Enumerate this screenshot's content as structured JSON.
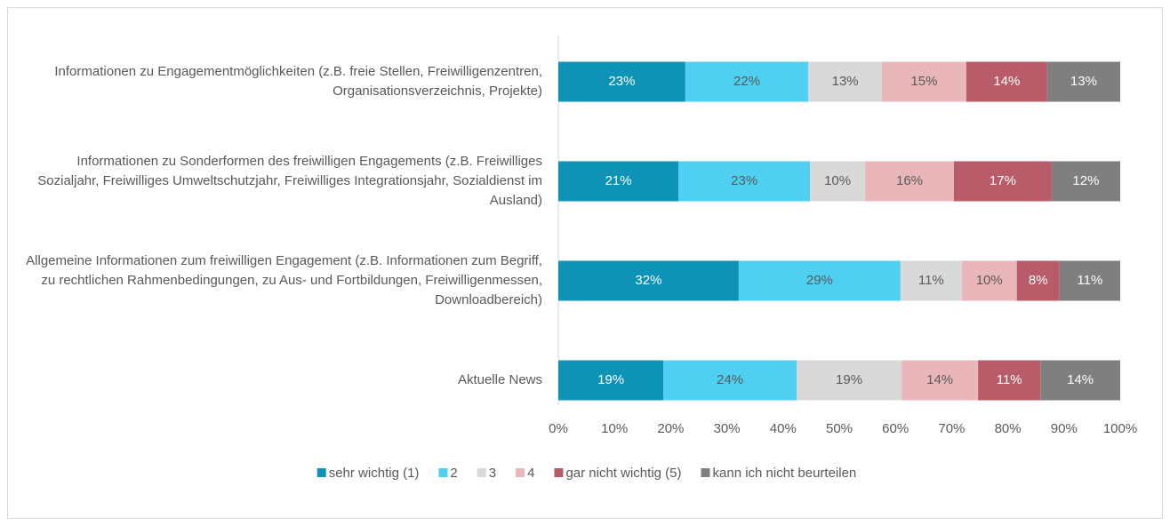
{
  "chart_data": {
    "type": "stacked-horizontal-bar",
    "categories": [
      "Informationen zu Engagementmöglichkeiten (z.B. freie Stellen, Freiwilligenzentren, Organisationsverzeichnis, Projekte)",
      "Informationen zu Sonderformen des freiwilligen Engagements (z.B. Freiwilliges Sozialjahr, Freiwilliges Umweltschutzjahr, Freiwilliges Integrationsjahr, Sozialdienst im Ausland)",
      "Allgemeine Informationen zum freiwilligen Engagement (z.B. Informationen zum Begriff, zu rechtlichen Rahmenbedingungen, zu Aus- und Fortbildungen, Freiwilligenmessen, Downloadbereich)",
      "Aktuelle News"
    ],
    "series": [
      {
        "name": "sehr wichtig (1)",
        "color": "#0e93b6",
        "label_color": "#ffffff",
        "values": [
          22.6,
          21.4,
          32.1,
          18.7
        ],
        "value_labels": [
          "23%",
          "21%",
          "32%",
          "19%"
        ]
      },
      {
        "name": "2",
        "color": "#4fd0f1",
        "label_color": "#595959",
        "values": [
          21.9,
          23.4,
          28.8,
          23.7
        ],
        "value_labels": [
          "22%",
          "23%",
          "29%",
          "24%"
        ]
      },
      {
        "name": "3",
        "color": "#d9d9d9",
        "label_color": "#595959",
        "values": [
          13.1,
          9.8,
          10.9,
          18.7
        ],
        "value_labels": [
          "13%",
          "10%",
          "11%",
          "19%"
        ]
      },
      {
        "name": "4",
        "color": "#e9b7b9",
        "label_color": "#595959",
        "values": [
          15.0,
          15.8,
          9.8,
          13.6
        ],
        "value_labels": [
          "15%",
          "16%",
          "10%",
          "14%"
        ]
      },
      {
        "name": "gar nicht wichtig (5)",
        "color": "#b85c6a",
        "label_color": "#ffffff",
        "values": [
          14.4,
          17.4,
          7.6,
          11.1
        ],
        "value_labels": [
          "14%",
          "17%",
          "8%",
          "11%"
        ]
      },
      {
        "name": "kann ich nicht beurteilen",
        "color": "#7f7f7f",
        "label_color": "#ffffff",
        "values": [
          13.0,
          12.2,
          10.8,
          14.2
        ],
        "value_labels": [
          "13%",
          "12%",
          "11%",
          "14%"
        ]
      }
    ],
    "xlim": [
      0,
      100
    ],
    "xticks": [
      {
        "value": 0,
        "label": "0%"
      },
      {
        "value": 10,
        "label": "10%"
      },
      {
        "value": 20,
        "label": "20%"
      },
      {
        "value": 30,
        "label": "30%"
      },
      {
        "value": 40,
        "label": "40%"
      },
      {
        "value": 50,
        "label": "50%"
      },
      {
        "value": 60,
        "label": "60%"
      },
      {
        "value": 70,
        "label": "70%"
      },
      {
        "value": 80,
        "label": "80%"
      },
      {
        "value": 90,
        "label": "90%"
      },
      {
        "value": 100,
        "label": "100%"
      }
    ],
    "legend": "bottom"
  }
}
